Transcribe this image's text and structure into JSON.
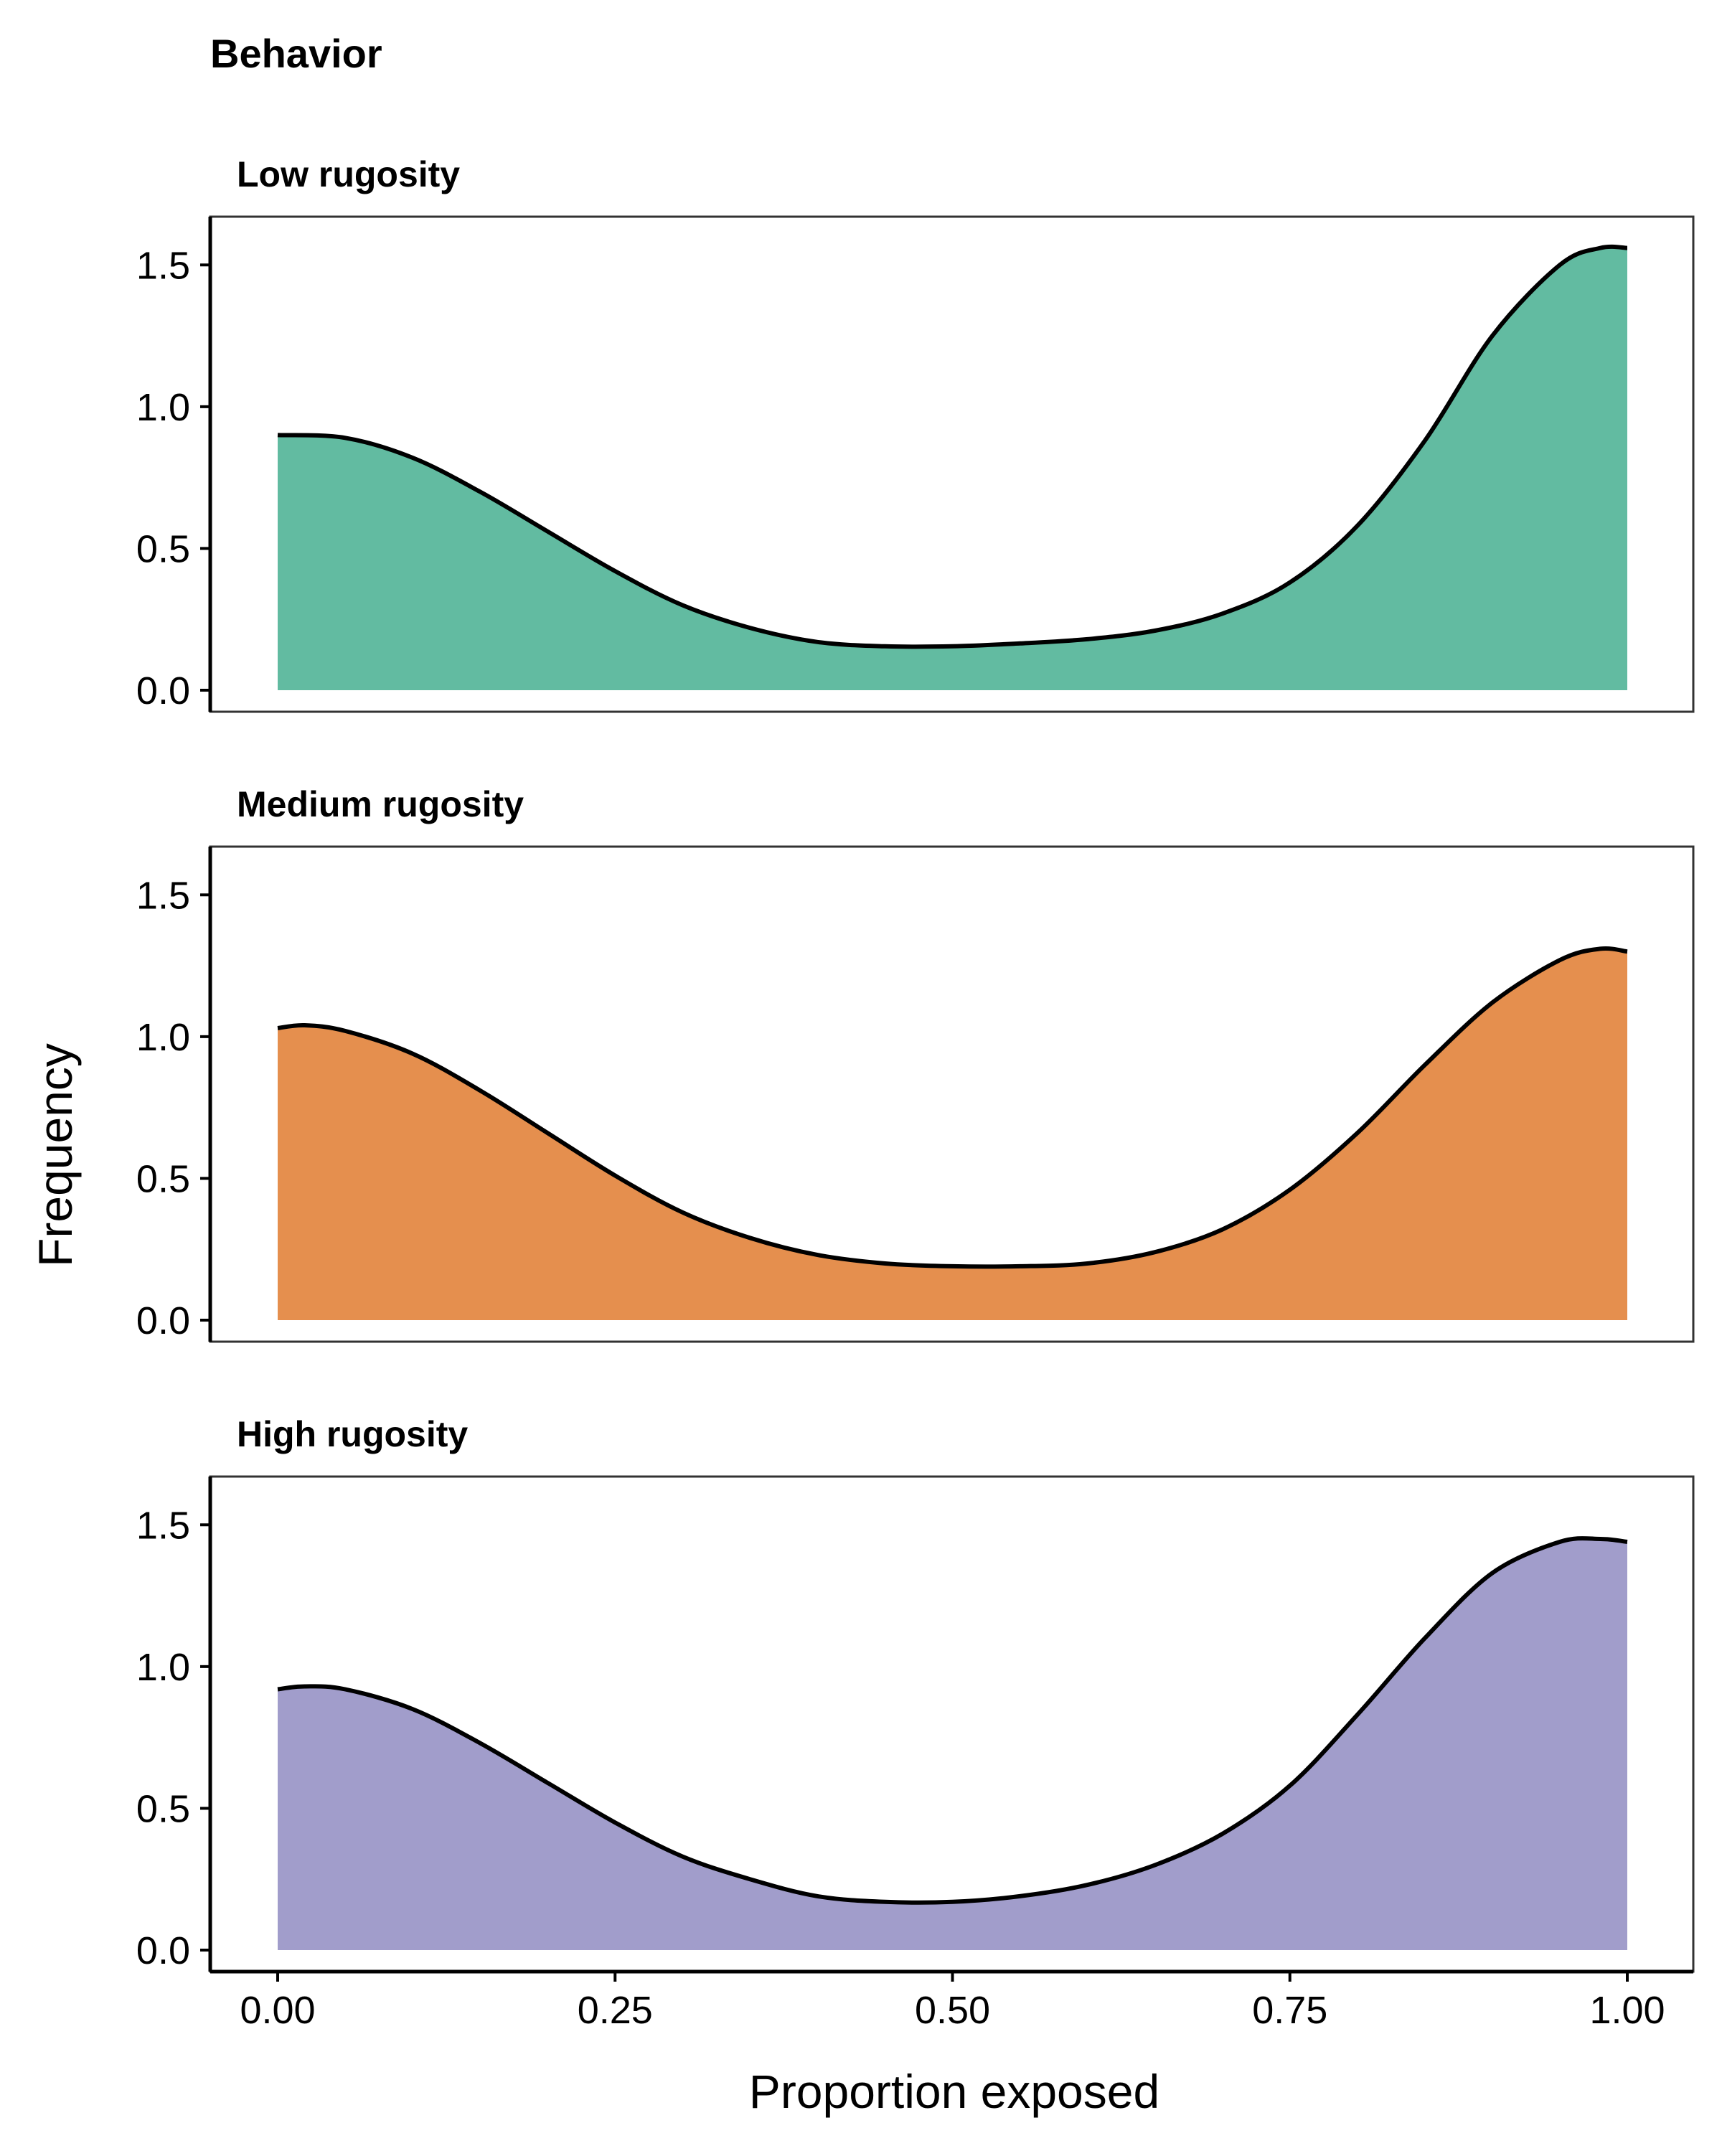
{
  "chart_data": {
    "type": "area",
    "title": "Behavior",
    "xlabel": "Proportion exposed",
    "ylabel": "Frequency",
    "xlim": [
      0,
      1
    ],
    "ylim": [
      0,
      1.65
    ],
    "x_ticks": [
      "0.00",
      "0.25",
      "0.50",
      "0.75",
      "1.00"
    ],
    "x_tick_values": [
      0,
      0.25,
      0.5,
      0.75,
      1.0
    ],
    "y_ticks": [
      "0.0",
      "0.5",
      "1.0",
      "1.5"
    ],
    "y_tick_values": [
      0,
      0.5,
      1.0,
      1.5
    ],
    "grid": false,
    "legend": "none",
    "panels": [
      {
        "title": "Low rugosity",
        "color": "#62bba1",
        "x": [
          0.0,
          0.05,
          0.1,
          0.15,
          0.2,
          0.25,
          0.3,
          0.35,
          0.4,
          0.45,
          0.5,
          0.55,
          0.6,
          0.65,
          0.7,
          0.75,
          0.8,
          0.85,
          0.9,
          0.95,
          0.98,
          1.0
        ],
        "values": [
          0.9,
          0.89,
          0.82,
          0.7,
          0.56,
          0.42,
          0.3,
          0.22,
          0.17,
          0.155,
          0.155,
          0.165,
          0.18,
          0.21,
          0.27,
          0.38,
          0.58,
          0.88,
          1.25,
          1.5,
          1.56,
          1.56
        ]
      },
      {
        "title": "Medium rugosity",
        "color": "#e58f4e",
        "x": [
          0.0,
          0.02,
          0.05,
          0.1,
          0.15,
          0.2,
          0.25,
          0.3,
          0.35,
          0.4,
          0.45,
          0.5,
          0.55,
          0.6,
          0.65,
          0.7,
          0.75,
          0.8,
          0.85,
          0.9,
          0.95,
          0.98,
          1.0
        ],
        "values": [
          1.03,
          1.04,
          1.02,
          0.94,
          0.81,
          0.66,
          0.51,
          0.38,
          0.29,
          0.23,
          0.2,
          0.19,
          0.19,
          0.2,
          0.24,
          0.32,
          0.46,
          0.66,
          0.9,
          1.12,
          1.27,
          1.31,
          1.3
        ]
      },
      {
        "title": "High rugosity",
        "color": "#a19dcb",
        "x": [
          0.0,
          0.02,
          0.05,
          0.1,
          0.15,
          0.2,
          0.25,
          0.3,
          0.35,
          0.4,
          0.45,
          0.5,
          0.55,
          0.6,
          0.65,
          0.7,
          0.75,
          0.8,
          0.85,
          0.9,
          0.95,
          0.98,
          1.0
        ],
        "values": [
          0.92,
          0.93,
          0.92,
          0.85,
          0.73,
          0.59,
          0.45,
          0.33,
          0.25,
          0.19,
          0.17,
          0.17,
          0.19,
          0.23,
          0.3,
          0.41,
          0.58,
          0.83,
          1.1,
          1.33,
          1.44,
          1.45,
          1.44
        ]
      }
    ]
  }
}
